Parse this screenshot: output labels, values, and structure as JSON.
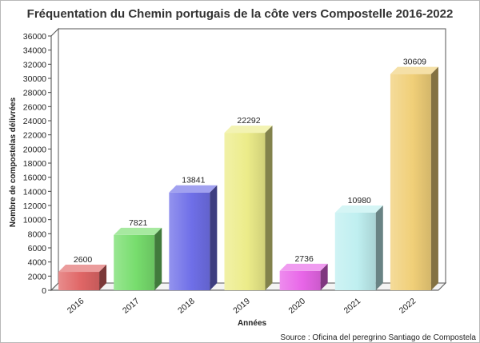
{
  "chart_data": {
    "type": "bar",
    "title": "Fréquentation du Chemin portugais de la côte vers Compostelle 2016-2022",
    "xlabel": "Années",
    "ylabel": "Nombre de compostelas délivrées",
    "categories": [
      "2016",
      "2017",
      "2018",
      "2019",
      "2020",
      "2021",
      "2022"
    ],
    "values": [
      2600,
      7821,
      13841,
      22292,
      2736,
      10980,
      30609
    ],
    "ylim": [
      0,
      36000
    ],
    "ytick_step": 2000,
    "grid": false,
    "colors": [
      "#e06666",
      "#77dd6d",
      "#6f6fe8",
      "#ecec8a",
      "#e866e8",
      "#bfeff0",
      "#f0cf78"
    ],
    "source": "Source : Oficina del peregrino Santiago de Compostela"
  }
}
